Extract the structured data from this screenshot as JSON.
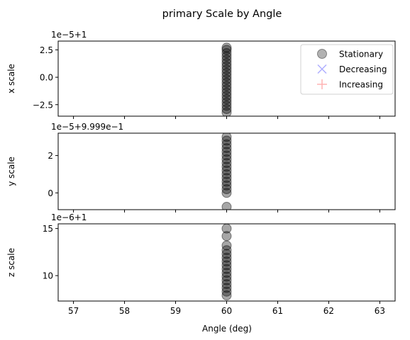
{
  "chart_data": {
    "type": "scatter",
    "title": "primary Scale by Angle",
    "xlabel": "Angle (deg)",
    "xlim": [
      56.7,
      63.3
    ],
    "xticks": [
      57,
      58,
      59,
      60,
      61,
      62,
      63
    ],
    "xtick_labels": [
      "57",
      "58",
      "59",
      "60",
      "61",
      "62",
      "63"
    ],
    "legend": {
      "placement": "top-right",
      "entries": [
        {
          "name": "Stationary",
          "marker": "circle",
          "color": "#808080"
        },
        {
          "name": "Decreasing",
          "marker": "x",
          "color": "#6b6bff"
        },
        {
          "name": "Increasing",
          "marker": "plus",
          "color": "#ff8080"
        }
      ]
    },
    "subplots": [
      {
        "ylabel": "x scale",
        "offset_text": "1e−5+1",
        "ylim": [
          -3.55,
          3.3
        ],
        "yticks": [
          -2.5,
          0.0,
          2.5
        ],
        "ytick_labels": [
          "−2.5",
          "0.0",
          "2.5"
        ],
        "series": [
          {
            "name": "Stationary",
            "x": 60,
            "y": [
              -3.2,
              -2.9,
              -2.6,
              -2.3,
              -2.0,
              -1.7,
              -1.4,
              -1.1,
              -0.8,
              -0.5,
              -0.2,
              0.1,
              0.4,
              0.7,
              1.0,
              1.3,
              1.6,
              1.9,
              2.2,
              2.5,
              2.7
            ]
          }
        ]
      },
      {
        "ylabel": "y scale",
        "offset_text": "1e−5+9.999e−1",
        "ylim": [
          -0.9,
          3.2
        ],
        "yticks": [
          0,
          2
        ],
        "ytick_labels": [
          "0",
          "2"
        ],
        "series": [
          {
            "name": "Stationary",
            "x": 60,
            "y": [
              -0.75,
              0.0,
              0.2,
              0.4,
              0.6,
              0.8,
              1.0,
              1.2,
              1.4,
              1.6,
              1.8,
              2.0,
              2.2,
              2.4,
              2.6,
              2.8,
              3.0
            ]
          }
        ]
      },
      {
        "ylabel": "z scale",
        "offset_text": "1e−6+1",
        "ylim": [
          7.3,
          15.5
        ],
        "yticks": [
          10,
          15
        ],
        "ytick_labels": [
          "10",
          "15"
        ],
        "series": [
          {
            "name": "Stationary",
            "x": 60,
            "y": [
              7.9,
              8.3,
              8.7,
              9.1,
              9.5,
              9.9,
              10.3,
              10.7,
              11.1,
              11.5,
              11.9,
              12.3,
              12.7,
              13.2,
              14.2,
              15.0
            ]
          }
        ]
      }
    ]
  }
}
